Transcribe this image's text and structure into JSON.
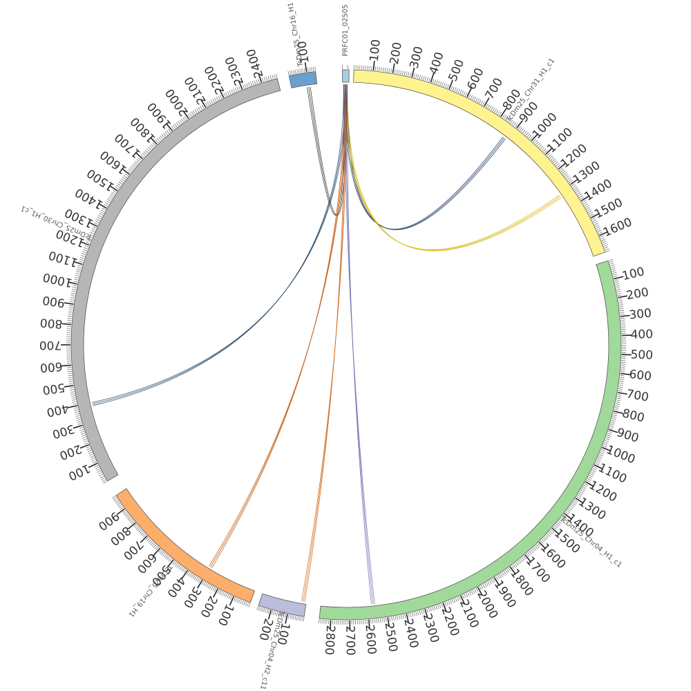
{
  "chart_data": {
    "type": "chord",
    "ideogram_order": "clockwise",
    "segments": [
      {
        "name": "PRFC01_02505",
        "length": 12,
        "start_deg": -0.8,
        "end_deg": 0.6,
        "color": "#a6cee3",
        "tick_step": 100
      },
      {
        "name": "TcDm25_Chr31_H1_c1",
        "length": 1690,
        "start_deg": 1.6,
        "end_deg": 70.3,
        "color": "#fff38f",
        "tick_step": 100
      },
      {
        "name": "TcDm25_Chr04_H1_c1",
        "length": 2860,
        "start_deg": 72.2,
        "end_deg": 185.6,
        "color": "#a1d99b",
        "tick_step": 100
      },
      {
        "name": "TcDm25_Chr04_H2_c11",
        "length": 280,
        "start_deg": 188.8,
        "end_deg": 198.6,
        "color": "#bcbddc",
        "tick_step": 100
      },
      {
        "name": "TcDm25_Chr19_H1",
        "length": 990,
        "start_deg": 200.4,
        "end_deg": 236.8,
        "color": "#fdae6b",
        "tick_step": 100
      },
      {
        "name": "TcDm25_Chr30_H1_c1",
        "length": 2480,
        "start_deg": 240.3,
        "end_deg": 345.5,
        "color": "#b6b6b6",
        "tick_step": 100
      },
      {
        "name": "TcDm25_Chr16_H1",
        "length": 150,
        "start_deg": 348.0,
        "end_deg": 353.6,
        "color": "#6a9fd0",
        "tick_step": 100
      }
    ],
    "links": [
      {
        "from": "PRFC01_02505",
        "from_pos": 6,
        "to": "TcDm25_Chr31_H1_c1",
        "to_pos": 880,
        "color": "#1f3a5f"
      },
      {
        "from": "PRFC01_02505",
        "from_pos": 6,
        "to": "TcDm25_Chr31_H1_c1",
        "to_pos": 1320,
        "color": "#d4b400"
      },
      {
        "from": "PRFC01_02505",
        "from_pos": 5,
        "to": "TcDm25_Chr30_H1_c1",
        "to_pos": 390,
        "color": "#2a4a6a"
      },
      {
        "from": "PRFC01_02505",
        "from_pos": 5,
        "to": "TcDm25_Chr16_H1",
        "to_pos": 100,
        "color": "#2a2a2a"
      },
      {
        "from": "PRFC01_02505",
        "from_pos": 6,
        "to": "TcDm25_Chr19_H1",
        "to_pos": 300,
        "color": "#c05a10"
      },
      {
        "from": "PRFC01_02505",
        "from_pos": 6,
        "to": "TcDm25_Chr04_H2_c11",
        "to_pos": 20,
        "color": "#d06a20"
      },
      {
        "from": "PRFC01_02505",
        "from_pos": 6,
        "to": "TcDm25_Chr04_H1_c1",
        "to_pos": 2570,
        "color": "#6b6bb0"
      }
    ]
  }
}
